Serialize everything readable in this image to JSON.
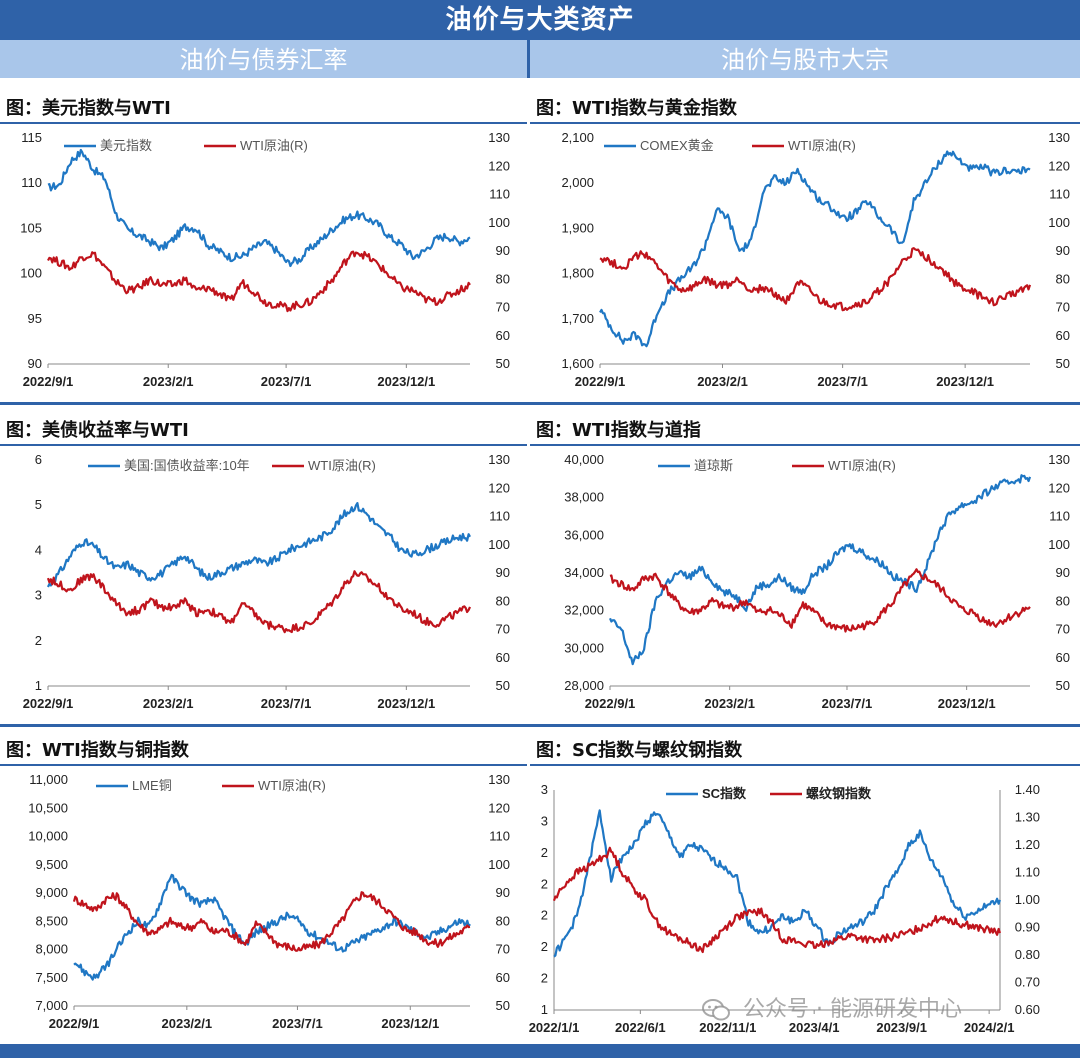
{
  "page": {
    "title": "油价与大类资产",
    "sections": [
      "油价与债券汇率",
      "油价与股市大宗"
    ],
    "watermark": "公众号 · 能源研发中心"
  },
  "colors": {
    "blue": "#1f77c4",
    "red": "#c0141c",
    "banner": "#2f62a8",
    "section": "#a9c6ea"
  },
  "chart_data": [
    {
      "type": "line",
      "title": "图：美元指数与WTI",
      "x_ticks": [
        "2022/9/1",
        "2023/2/1",
        "2023/7/1",
        "2023/12/1"
      ],
      "x_range": [
        "2022/9/1",
        "2024/2/20"
      ],
      "left_axis": {
        "ticks": [
          "90",
          "95",
          "100",
          "105",
          "110",
          "115"
        ],
        "range": [
          90,
          115
        ]
      },
      "right_axis": {
        "ticks": [
          "50",
          "60",
          "70",
          "80",
          "90",
          "100",
          "110",
          "120",
          "130"
        ],
        "range": [
          50,
          130
        ]
      },
      "series": [
        {
          "name": "美元指数",
          "axis": "left",
          "color": "#1f77c4",
          "values": [
            109.5,
            109.8,
            112.5,
            113.5,
            111.5,
            110.5,
            106.5,
            104.8,
            104.2,
            103.5,
            102.8,
            103.8,
            105.2,
            105.0,
            103.2,
            102.5,
            101.8,
            101.9,
            102.8,
            103.5,
            102.6,
            101.2,
            101.5,
            102.8,
            103.8,
            105.0,
            106.0,
            106.5,
            106.1,
            105.4,
            104.0,
            103.2,
            101.8,
            102.5,
            103.8,
            104.2,
            103.5,
            104.0
          ]
        },
        {
          "name": "WTI原油(R)",
          "axis": "right",
          "color": "#c0141c",
          "values": [
            88,
            86,
            84,
            88,
            89,
            84,
            79,
            76,
            77,
            80,
            78,
            78,
            80,
            76,
            77,
            75,
            72,
            79,
            76,
            72,
            71,
            70,
            71,
            72,
            76,
            80,
            86,
            90,
            88,
            85,
            81,
            77,
            76,
            73,
            72,
            74,
            76,
            78
          ]
        }
      ]
    },
    {
      "type": "line",
      "title": "图：WTI指数与黄金指数",
      "x_ticks": [
        "2022/9/1",
        "2023/2/1",
        "2023/7/1",
        "2023/12/1"
      ],
      "x_range": [
        "2022/9/1",
        "2024/2/20"
      ],
      "left_axis": {
        "ticks": [
          "1,600",
          "1,700",
          "1,800",
          "1,900",
          "2,000",
          "2,100"
        ],
        "range": [
          1600,
          2100
        ]
      },
      "right_axis": {
        "ticks": [
          "50",
          "60",
          "70",
          "80",
          "90",
          "100",
          "110",
          "120",
          "130"
        ],
        "range": [
          50,
          130
        ]
      },
      "series": [
        {
          "name": "COMEX黄金",
          "axis": "left",
          "color": "#1f77c4",
          "values": [
            1720,
            1680,
            1650,
            1665,
            1640,
            1720,
            1760,
            1790,
            1815,
            1860,
            1940,
            1925,
            1850,
            1870,
            1980,
            2010,
            2000,
            2030,
            1990,
            1960,
            1945,
            1920,
            1935,
            1960,
            1925,
            1900,
            1860,
            1960,
            2000,
            2040,
            2070,
            2050,
            2030,
            2035,
            2020,
            2030,
            2025,
            2030
          ]
        },
        {
          "name": "WTI原油(R)",
          "axis": "right",
          "color": "#c0141c",
          "values": [
            88,
            86,
            84,
            88,
            89,
            84,
            79,
            76,
            77,
            80,
            78,
            78,
            80,
            76,
            77,
            75,
            72,
            79,
            76,
            72,
            71,
            70,
            71,
            72,
            76,
            80,
            86,
            90,
            88,
            85,
            81,
            77,
            76,
            73,
            72,
            74,
            76,
            78
          ]
        }
      ]
    },
    {
      "type": "line",
      "title": "图：美债收益率与WTI",
      "x_ticks": [
        "2022/9/1",
        "2023/2/1",
        "2023/7/1",
        "2023/12/1"
      ],
      "x_range": [
        "2022/9/1",
        "2024/2/20"
      ],
      "left_axis": {
        "ticks": [
          "1",
          "2",
          "3",
          "4",
          "5",
          "6"
        ],
        "range": [
          1,
          6
        ]
      },
      "right_axis": {
        "ticks": [
          "50",
          "60",
          "70",
          "80",
          "90",
          "100",
          "110",
          "120",
          "130"
        ],
        "range": [
          50,
          130
        ]
      },
      "series": [
        {
          "name": "美国:国债收益率:10年",
          "axis": "left",
          "color": "#1f77c4",
          "values": [
            3.2,
            3.5,
            3.9,
            4.2,
            4.1,
            3.8,
            3.6,
            3.7,
            3.5,
            3.4,
            3.5,
            3.7,
            3.9,
            3.6,
            3.4,
            3.5,
            3.6,
            3.7,
            3.8,
            3.7,
            3.8,
            4.0,
            4.1,
            4.2,
            4.3,
            4.5,
            4.8,
            5.0,
            4.8,
            4.5,
            4.3,
            4.0,
            3.9,
            4.0,
            4.1,
            4.2,
            4.3,
            4.3
          ]
        },
        {
          "name": "WTI原油(R)",
          "axis": "right",
          "color": "#c0141c",
          "values": [
            88,
            86,
            84,
            88,
            89,
            84,
            79,
            76,
            77,
            80,
            78,
            78,
            80,
            76,
            77,
            75,
            72,
            79,
            76,
            72,
            71,
            70,
            71,
            72,
            76,
            80,
            86,
            90,
            88,
            85,
            81,
            77,
            76,
            73,
            72,
            74,
            76,
            78
          ]
        }
      ]
    },
    {
      "type": "line",
      "title": "图：WTI指数与道指",
      "x_ticks": [
        "2022/9/1",
        "2023/2/1",
        "2023/7/1",
        "2023/12/1"
      ],
      "x_range": [
        "2022/9/1",
        "2024/2/20"
      ],
      "left_axis": {
        "ticks": [
          "28,000",
          "30,000",
          "32,000",
          "34,000",
          "36,000",
          "38,000",
          "40,000"
        ],
        "range": [
          28000,
          40000
        ]
      },
      "right_axis": {
        "ticks": [
          "50",
          "60",
          "70",
          "80",
          "90",
          "100",
          "110",
          "120",
          "130"
        ],
        "range": [
          50,
          130
        ]
      },
      "series": [
        {
          "name": "道琼斯",
          "axis": "left",
          "color": "#1f77c4",
          "values": [
            31500,
            31000,
            29200,
            30000,
            32500,
            33500,
            34000,
            33800,
            34200,
            33600,
            33000,
            32800,
            32200,
            33300,
            33400,
            33800,
            33200,
            33000,
            34000,
            34300,
            35000,
            35500,
            35200,
            34800,
            34500,
            33800,
            33500,
            33200,
            34500,
            36200,
            37200,
            37600,
            37800,
            38200,
            38600,
            38800,
            39000,
            39100
          ]
        },
        {
          "name": "WTI原油(R)",
          "axis": "right",
          "color": "#c0141c",
          "values": [
            88,
            86,
            84,
            88,
            89,
            84,
            79,
            76,
            77,
            80,
            78,
            78,
            80,
            76,
            77,
            75,
            72,
            79,
            76,
            72,
            71,
            70,
            71,
            72,
            76,
            80,
            86,
            90,
            88,
            85,
            81,
            77,
            76,
            73,
            72,
            74,
            76,
            78
          ]
        }
      ]
    },
    {
      "type": "line",
      "title": "图：WTI指数与铜指数",
      "x_ticks": [
        "2022/9/1",
        "2023/2/1",
        "2023/7/1",
        "2023/12/1"
      ],
      "x_range": [
        "2022/9/1",
        "2024/2/20"
      ],
      "left_axis": {
        "ticks": [
          "7,000",
          "7,500",
          "8,000",
          "8,500",
          "9,000",
          "9,500",
          "10,000",
          "10,500",
          "11,000"
        ],
        "range": [
          7000,
          11000
        ]
      },
      "right_axis": {
        "ticks": [
          "50",
          "60",
          "70",
          "80",
          "90",
          "100",
          "110",
          "120",
          "130"
        ],
        "range": [
          50,
          130
        ]
      },
      "series": [
        {
          "name": "LME铜",
          "axis": "left",
          "color": "#1f77c4",
          "values": [
            7800,
            7600,
            7500,
            7700,
            8000,
            8300,
            8500,
            8400,
            8800,
            9300,
            9100,
            8900,
            8800,
            8900,
            8600,
            8300,
            8100,
            8300,
            8400,
            8500,
            8600,
            8500,
            8300,
            8200,
            8100,
            8000,
            8100,
            8200,
            8300,
            8400,
            8500,
            8400,
            8300,
            8200,
            8300,
            8400,
            8500,
            8450
          ]
        },
        {
          "name": "WTI原油(R)",
          "axis": "right",
          "color": "#c0141c",
          "values": [
            88,
            86,
            84,
            88,
            89,
            84,
            79,
            76,
            77,
            80,
            78,
            78,
            80,
            76,
            77,
            75,
            72,
            79,
            76,
            72,
            71,
            70,
            71,
            72,
            76,
            80,
            86,
            90,
            88,
            85,
            81,
            77,
            76,
            73,
            72,
            74,
            76,
            78
          ]
        }
      ]
    },
    {
      "type": "line",
      "title": "图：SC指数与螺纹钢指数",
      "x_ticks": [
        "2022/1/1",
        "2022/6/1",
        "2022/11/1",
        "2023/4/1",
        "2023/9/1",
        "2024/2/1"
      ],
      "x_range": [
        "2022/1/1",
        "2024/2/20"
      ],
      "left_axis": {
        "ticks": [
          "1",
          "2",
          "2",
          "2",
          "2",
          "2",
          "3",
          "3"
        ],
        "range": [
          1,
          3
        ]
      },
      "right_axis": {
        "ticks": [
          "0.60",
          "0.70",
          "0.80",
          "0.90",
          "1.00",
          "1.10",
          "1.20",
          "1.30",
          "1.40"
        ],
        "range": [
          0.6,
          1.4
        ]
      },
      "series": [
        {
          "name": "SC指数",
          "axis": "left",
          "color": "#1f77c4",
          "values": [
            1.5,
            1.65,
            1.85,
            2.3,
            2.8,
            2.2,
            2.4,
            2.5,
            2.7,
            2.8,
            2.6,
            2.4,
            2.5,
            2.45,
            2.35,
            2.3,
            2.2,
            1.8,
            1.7,
            1.75,
            1.85,
            1.8,
            1.9,
            1.75,
            1.6,
            1.7,
            1.75,
            1.8,
            1.9,
            2.1,
            2.25,
            2.5,
            2.6,
            2.35,
            2.2,
            1.95,
            1.85,
            1.9,
            1.95,
            2.0
          ]
        },
        {
          "name": "螺纹钢指数",
          "axis": "right",
          "color": "#c0141c",
          "values": [
            1.0,
            1.06,
            1.1,
            1.12,
            1.15,
            1.18,
            1.1,
            1.04,
            1.0,
            0.92,
            0.88,
            0.86,
            0.84,
            0.82,
            0.86,
            0.9,
            0.94,
            0.95,
            0.96,
            0.92,
            0.86,
            0.85,
            0.84,
            0.83,
            0.85,
            0.86,
            0.87,
            0.86,
            0.85,
            0.86,
            0.87,
            0.88,
            0.9,
            0.92,
            0.94,
            0.92,
            0.91,
            0.9,
            0.89,
            0.88
          ]
        }
      ]
    }
  ]
}
